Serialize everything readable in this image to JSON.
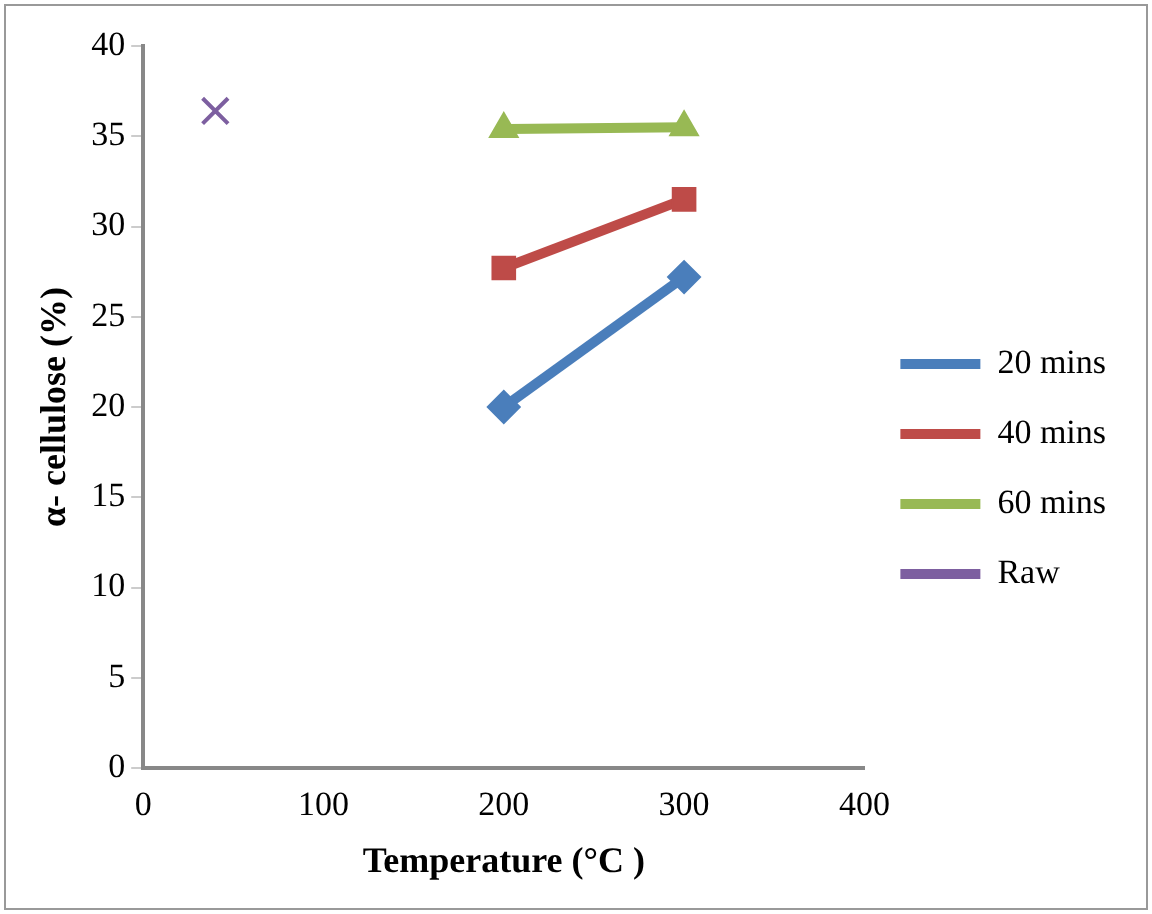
{
  "chart_data": {
    "type": "line",
    "xlabel": "Temperature (°C )",
    "ylabel": "α- cellulose (%)",
    "xlim": [
      0,
      400
    ],
    "xticks": [
      0,
      100,
      200,
      300,
      400
    ],
    "ylim": [
      0,
      40
    ],
    "yticks": [
      0,
      5,
      10,
      15,
      20,
      25,
      30,
      35,
      40
    ],
    "grid": false,
    "legend": "right",
    "series": [
      {
        "name": "20 mins",
        "color": "#4a7ebb",
        "marker": "diamond",
        "x": [
          200,
          300
        ],
        "values": [
          20.0,
          27.2
        ]
      },
      {
        "name": "40 mins",
        "color": "#be4b48",
        "marker": "square",
        "x": [
          200,
          300
        ],
        "values": [
          27.7,
          31.5
        ]
      },
      {
        "name": "60 mins",
        "color": "#98b954",
        "marker": "triangle",
        "x": [
          200,
          300
        ],
        "values": [
          35.4,
          35.5
        ]
      },
      {
        "name": "Raw",
        "color": "#7d5fa0",
        "marker": "cross",
        "type": "scatter",
        "x": [
          40
        ],
        "values": [
          36.4
        ]
      }
    ]
  }
}
